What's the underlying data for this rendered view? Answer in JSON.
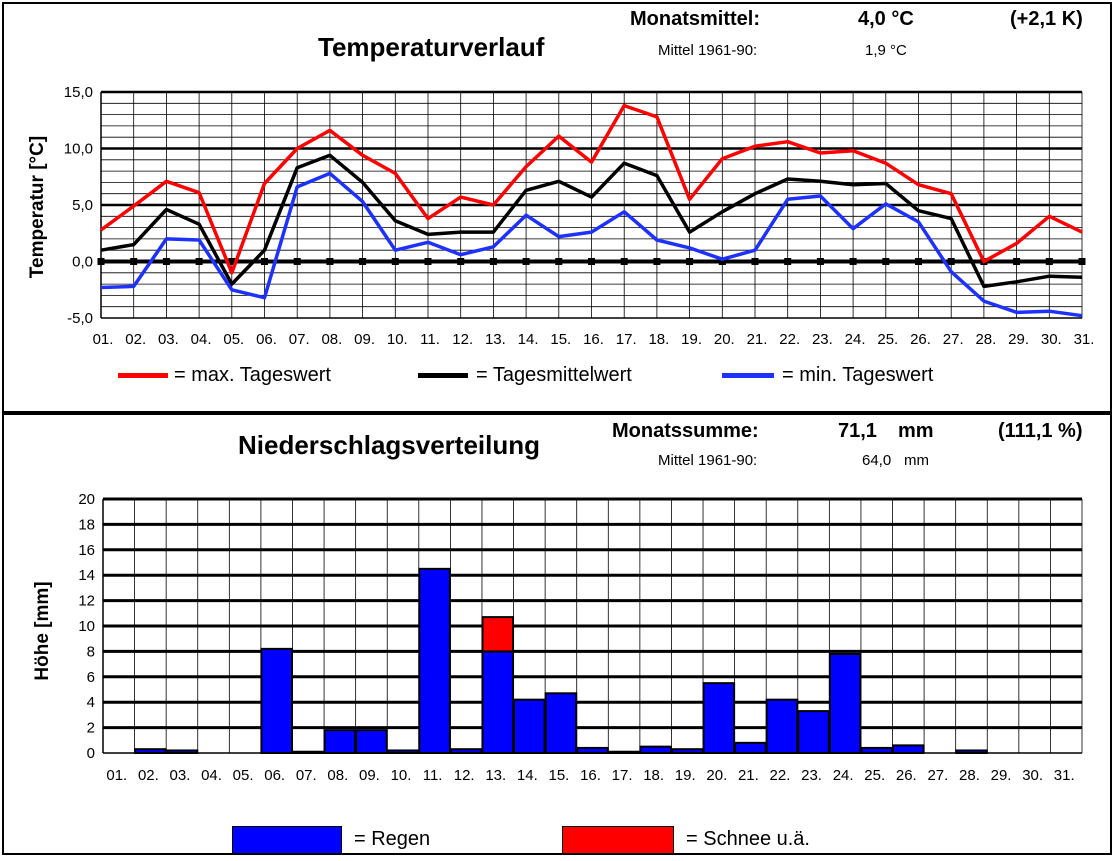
{
  "temperature_panel": {
    "title": "Temperaturverlauf",
    "monthly_mean_label": "Monatsmittel:",
    "monthly_mean_value": "4,0 °C",
    "monthly_mean_anomaly": "(+2,1 K)",
    "reference_label": "Mittel 1961-90:",
    "reference_value": "1,9 °C",
    "legend": {
      "max": "= max.  Tageswert",
      "mean": "= Tagesmittelwert",
      "min": "= min. Tageswert"
    }
  },
  "precip_panel": {
    "title": "Niederschlagsverteilung",
    "monthly_sum_label": "Monatssumme:",
    "monthly_sum_value": "71,1",
    "monthly_sum_unit": "mm",
    "monthly_sum_percent": "(111,1 %)",
    "reference_label": "Mittel 1961-90:",
    "reference_value": "64,0",
    "reference_unit": "mm",
    "legend": {
      "rain": "= Regen",
      "snow": "= Schnee u.ä."
    }
  },
  "colors": {
    "max": "#ff0000",
    "mean": "#000000",
    "min": "#1e32ff",
    "rain": "#0000ff",
    "snow": "#ff0000"
  },
  "chart_data": [
    {
      "type": "line",
      "title": "Temperaturverlauf",
      "xlabel": "",
      "ylabel": "Temperatur [°C]",
      "x": [
        "01.",
        "02.",
        "03.",
        "04.",
        "05.",
        "06.",
        "07.",
        "08.",
        "09.",
        "10.",
        "11.",
        "12.",
        "13.",
        "14.",
        "15.",
        "16.",
        "17.",
        "18.",
        "19.",
        "20.",
        "21.",
        "22.",
        "23.",
        "24.",
        "25.",
        "26.",
        "27.",
        "28.",
        "29.",
        "30.",
        "31."
      ],
      "y_ticks": [
        "15,0",
        "10,0",
        "5,0",
        "0,0",
        "-5,0"
      ],
      "ylim": [
        -5,
        15
      ],
      "grid": true,
      "legend_position": "bottom",
      "series": [
        {
          "name": "= max.  Tageswert",
          "color": "#ff0000",
          "values": [
            2.8,
            4.9,
            7.1,
            6.1,
            -1.0,
            6.9,
            10.0,
            11.6,
            9.4,
            7.8,
            3.8,
            5.7,
            5.0,
            8.4,
            11.1,
            8.8,
            13.8,
            12.8,
            5.5,
            9.1,
            10.2,
            10.6,
            9.6,
            9.8,
            8.7,
            6.8,
            6.0,
            0.0,
            1.6,
            4.0,
            2.6
          ]
        },
        {
          "name": "= Tagesmittelwert",
          "color": "#000000",
          "values": [
            1.0,
            1.5,
            4.6,
            3.3,
            -2.0,
            1.0,
            8.3,
            9.4,
            7.0,
            3.6,
            2.4,
            2.6,
            2.6,
            6.3,
            7.1,
            5.7,
            8.7,
            7.6,
            2.6,
            4.4,
            6.0,
            7.3,
            7.1,
            6.8,
            6.9,
            4.5,
            3.8,
            -2.2,
            -1.8,
            -1.3,
            -1.4
          ]
        },
        {
          "name": "= min. Tageswert",
          "color": "#1e32ff",
          "values": [
            -2.3,
            -2.2,
            2.0,
            1.9,
            -2.5,
            -3.2,
            6.6,
            7.8,
            5.3,
            1.0,
            1.7,
            0.6,
            1.3,
            4.1,
            2.2,
            2.6,
            4.4,
            1.9,
            1.2,
            0.2,
            1.0,
            5.5,
            5.8,
            2.9,
            5.1,
            3.5,
            -0.9,
            -3.5,
            -4.5,
            -4.4,
            -4.8
          ]
        }
      ]
    },
    {
      "type": "bar",
      "title": "Niederschlagsverteilung",
      "xlabel": "",
      "ylabel": "Höhe [mm]",
      "categories": [
        "01.",
        "02.",
        "03.",
        "04.",
        "05.",
        "06.",
        "07.",
        "08.",
        "09.",
        "10.",
        "11.",
        "12.",
        "13.",
        "14.",
        "15.",
        "16.",
        "17.",
        "18.",
        "19.",
        "20.",
        "21.",
        "22.",
        "23.",
        "24.",
        "25.",
        "26.",
        "27.",
        "28.",
        "29.",
        "30.",
        "31."
      ],
      "y_ticks": [
        "20",
        "18",
        "16",
        "14",
        "12",
        "10",
        "8",
        "6",
        "4",
        "2",
        "0"
      ],
      "ylim": [
        0,
        20
      ],
      "grid": true,
      "stacked": true,
      "legend_position": "bottom",
      "series": [
        {
          "name": "= Regen",
          "color": "#0000ff",
          "values": [
            0,
            0.3,
            0.2,
            0,
            0,
            8.2,
            0.1,
            1.8,
            1.8,
            0.2,
            14.5,
            0.3,
            8.0,
            4.2,
            4.7,
            0.4,
            0.1,
            0.5,
            0.3,
            5.5,
            0.8,
            4.2,
            3.3,
            7.8,
            0.4,
            0.6,
            0,
            0.2,
            0,
            0,
            0
          ]
        },
        {
          "name": "= Schnee u.ä.",
          "color": "#ff0000",
          "values": [
            0,
            0,
            0,
            0,
            0,
            0,
            0,
            0,
            0,
            0,
            0,
            0,
            2.7,
            0,
            0,
            0,
            0,
            0,
            0,
            0,
            0,
            0,
            0,
            0,
            0,
            0,
            0,
            0,
            0,
            0,
            0
          ]
        }
      ]
    }
  ]
}
